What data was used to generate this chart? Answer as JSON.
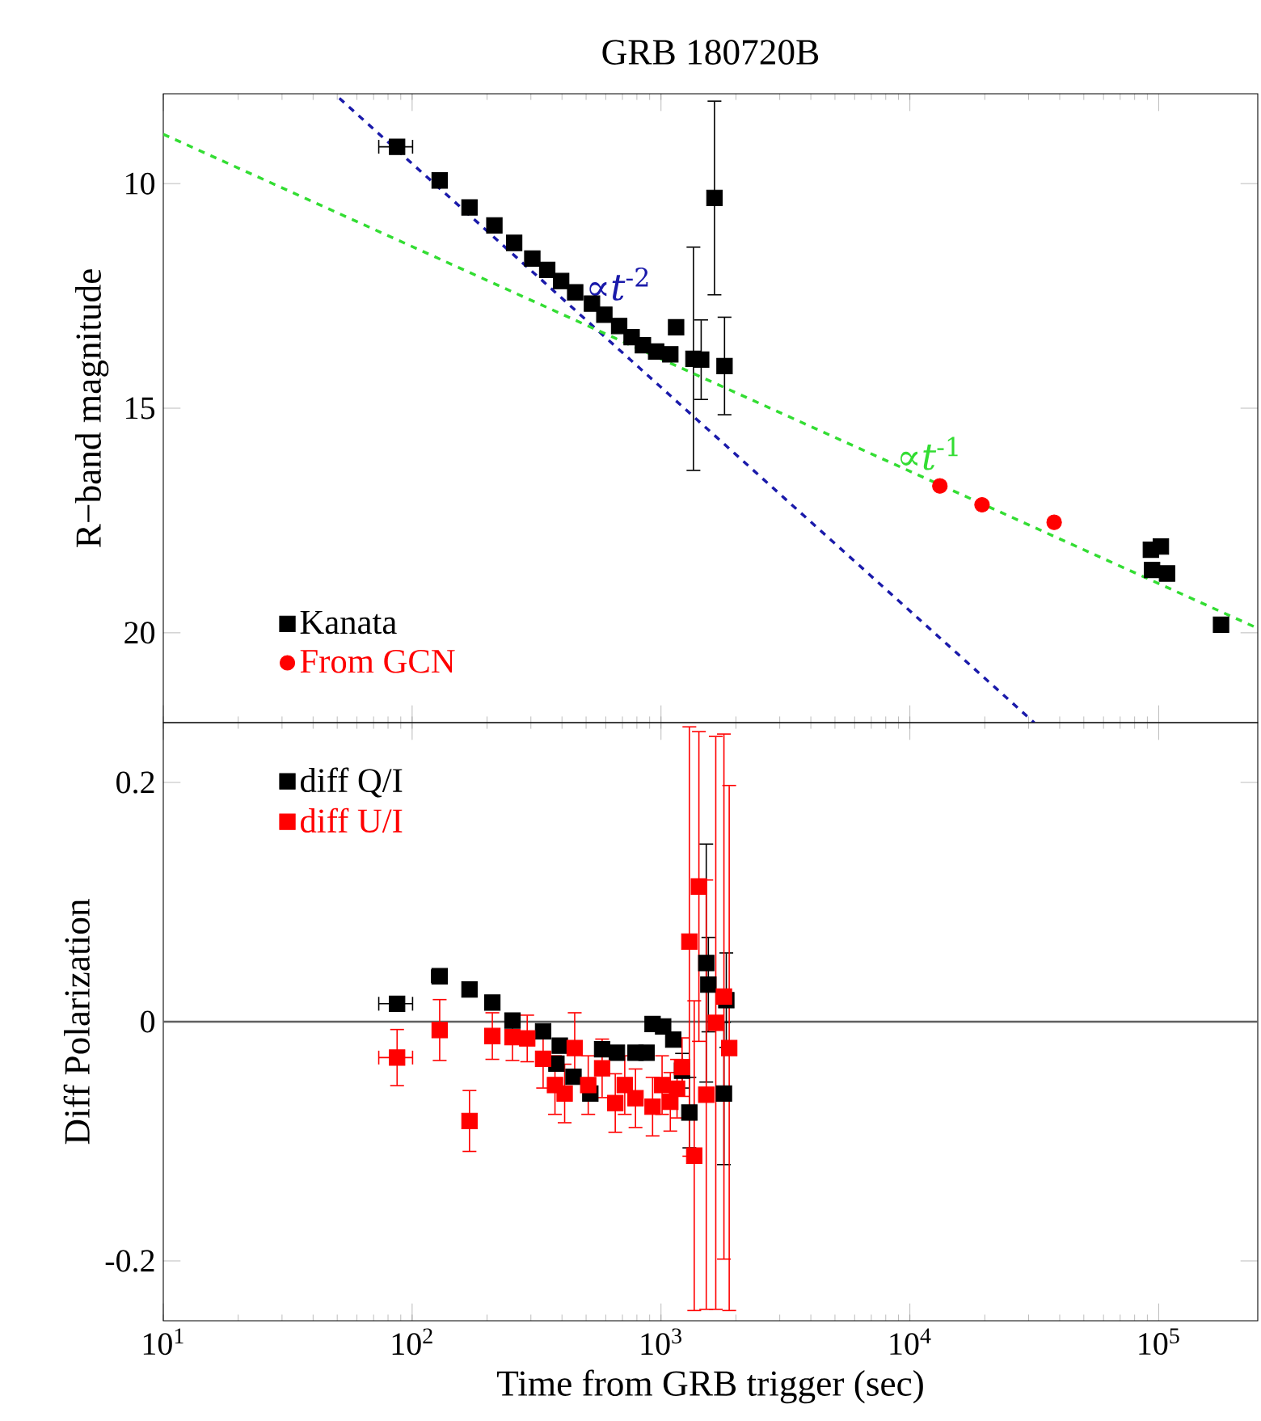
{
  "chart_data": [
    {
      "type": "scatter",
      "title": "GRB 180720B",
      "ylabel": "R−band magnitude",
      "log": "x",
      "xlim": [
        10,
        250000
      ],
      "ylim": [
        22,
        8
      ],
      "xticks": [
        {
          "value": 10,
          "label": null
        },
        {
          "value": 100,
          "label": null
        },
        {
          "value": 1000,
          "label": null
        },
        {
          "value": 10000,
          "label": null
        },
        {
          "value": 100000,
          "label": null
        }
      ],
      "yticks": [
        10,
        15,
        20
      ],
      "tick_labels": "y",
      "legend": "bottom left",
      "annotations": [
        "∝*t*$^{-2}$",
        "∝*t*$^{-1}$"
      ],
      "series": [
        {
          "name": "Kanata",
          "type": "scatter",
          "marker": "square",
          "color": "#000000",
          "x": [
            87,
            129,
            170,
            214,
            257,
            304,
            349,
            397,
            452,
            528,
            592,
            679,
            762,
            846,
            956,
            1090,
            1150,
            1350,
            1450,
            1640,
            1800,
            93000,
            94000,
            102000,
            108000,
            178000
          ],
          "values": [
            9.18,
            9.93,
            10.53,
            10.93,
            11.32,
            11.67,
            11.92,
            12.17,
            12.42,
            12.67,
            12.92,
            13.17,
            13.42,
            13.6,
            13.74,
            13.8,
            13.2,
            13.9,
            13.92,
            10.32,
            14.06,
            18.15,
            18.6,
            18.08,
            18.68,
            19.82
          ],
          "errors": [
            null,
            null,
            null,
            null,
            null,
            null,
            null,
            null,
            null,
            null,
            null,
            null,
            null,
            null,
            null,
            null,
            null,
            2.5,
            0.9,
            2.17,
            1.1,
            null,
            null,
            null,
            null,
            null
          ],
          "xerrors": [
            14,
            null,
            null,
            null,
            null,
            null,
            null,
            null,
            null,
            null,
            null,
            null,
            null,
            null,
            null,
            null,
            null,
            null,
            null,
            null,
            null,
            null,
            null,
            null,
            null,
            null
          ]
        },
        {
          "name": "From GCN",
          "type": "scatter",
          "marker": "circle",
          "color": "#ff0000",
          "x": [
            13200,
            19500,
            38000
          ],
          "values": [
            16.73,
            17.15,
            17.54
          ]
        },
        {
          "type": "line",
          "line_style": "dashed",
          "color": "#1a1aaa",
          "x": [
            51,
            31600
          ],
          "values": [
            8.1,
            22.0
          ]
        },
        {
          "type": "line",
          "line_style": "dashed",
          "color": "#33dd33",
          "x": [
            10,
            250000
          ],
          "values": [
            8.9,
            19.9
          ]
        }
      ]
    },
    {
      "type": "scatter",
      "xlabel": "Time from GRB trigger (sec)",
      "ylabel": "Diff Polarization",
      "log": "x",
      "xlim": [
        10,
        250000
      ],
      "ylim": [
        -0.25,
        0.25
      ],
      "xticks": [
        {
          "value": 10,
          "label": "10$^{1}$"
        },
        {
          "value": 100,
          "label": "10$^{2}$"
        },
        {
          "value": 1000,
          "label": "10$^{3}$"
        },
        {
          "value": 10000,
          "label": "10$^{4}$"
        },
        {
          "value": 100000,
          "label": "10$^{5}$"
        }
      ],
      "yticks": [
        -0.2,
        0,
        0.2
      ],
      "legend": "top left",
      "ref_lines": [
        {
          "axis": "y",
          "value": 0,
          "color": "#606060"
        }
      ],
      "series": [
        {
          "name": "diff Q/I",
          "type": "scatter",
          "marker": "square",
          "color": "#000000",
          "x": [
            87,
            129,
            170,
            210,
            253,
            336,
            380,
            392,
            445,
            520,
            580,
            665,
            790,
            875,
            925,
            1020,
            1120,
            1215,
            1300,
            1520,
            1550,
            1790,
            1830
          ],
          "values": [
            0.015,
            0.038,
            0.027,
            0.016,
            0.001,
            -0.008,
            -0.035,
            -0.02,
            -0.046,
            -0.06,
            -0.023,
            -0.026,
            -0.026,
            -0.026,
            -0.002,
            -0.004,
            -0.015,
            -0.041,
            -0.076,
            0.049,
            0.031,
            -0.06,
            0.018
          ],
          "errors": [
            null,
            null,
            null,
            null,
            null,
            null,
            null,
            null,
            null,
            null,
            null,
            null,
            null,
            null,
            null,
            null,
            null,
            0.015,
            0.03,
            0.1,
            0.04,
            0.06,
            0.04
          ],
          "xerrors": [
            14,
            10,
            null,
            null,
            null,
            null,
            null,
            null,
            null,
            null,
            null,
            null,
            null,
            null,
            null,
            null,
            null,
            null,
            null,
            null,
            null,
            null,
            null
          ]
        },
        {
          "name": "diff U/I",
          "type": "scatter",
          "marker": "square",
          "color": "#ff0000",
          "x": [
            87,
            129,
            170,
            210,
            253,
            290,
            336,
            375,
            410,
            450,
            510,
            580,
            655,
            715,
            790,
            925,
            1010,
            1090,
            1160,
            1215,
            1300,
            1360,
            1420,
            1520,
            1660,
            1790,
            1880
          ],
          "values": [
            -0.03,
            -0.007,
            -0.083,
            -0.012,
            -0.013,
            -0.014,
            -0.031,
            -0.053,
            -0.06,
            -0.022,
            -0.053,
            -0.039,
            -0.068,
            -0.053,
            -0.064,
            -0.071,
            -0.053,
            -0.067,
            -0.056,
            -0.038,
            0.067,
            -0.112,
            0.113,
            -0.061,
            -0.001,
            0.021,
            -0.022
          ],
          "errors": [
            0.024,
            0.026,
            0.026,
            0.02,
            0.02,
            0.02,
            0.025,
            0.025,
            0.025,
            0.03,
            0.025,
            0.025,
            0.025,
            0.025,
            0.025,
            0.025,
            0.025,
            0.025,
            0.025,
            0.025,
            0.18,
            0.13,
            0.13,
            0.18,
            0.24,
            0.22,
            0.22
          ],
          "xerrors": [
            14,
            null,
            null,
            null,
            null,
            null,
            null,
            null,
            null,
            null,
            null,
            null,
            null,
            null,
            null,
            null,
            null,
            null,
            null,
            null,
            null,
            null,
            null,
            null,
            null,
            null,
            null
          ]
        }
      ]
    }
  ]
}
